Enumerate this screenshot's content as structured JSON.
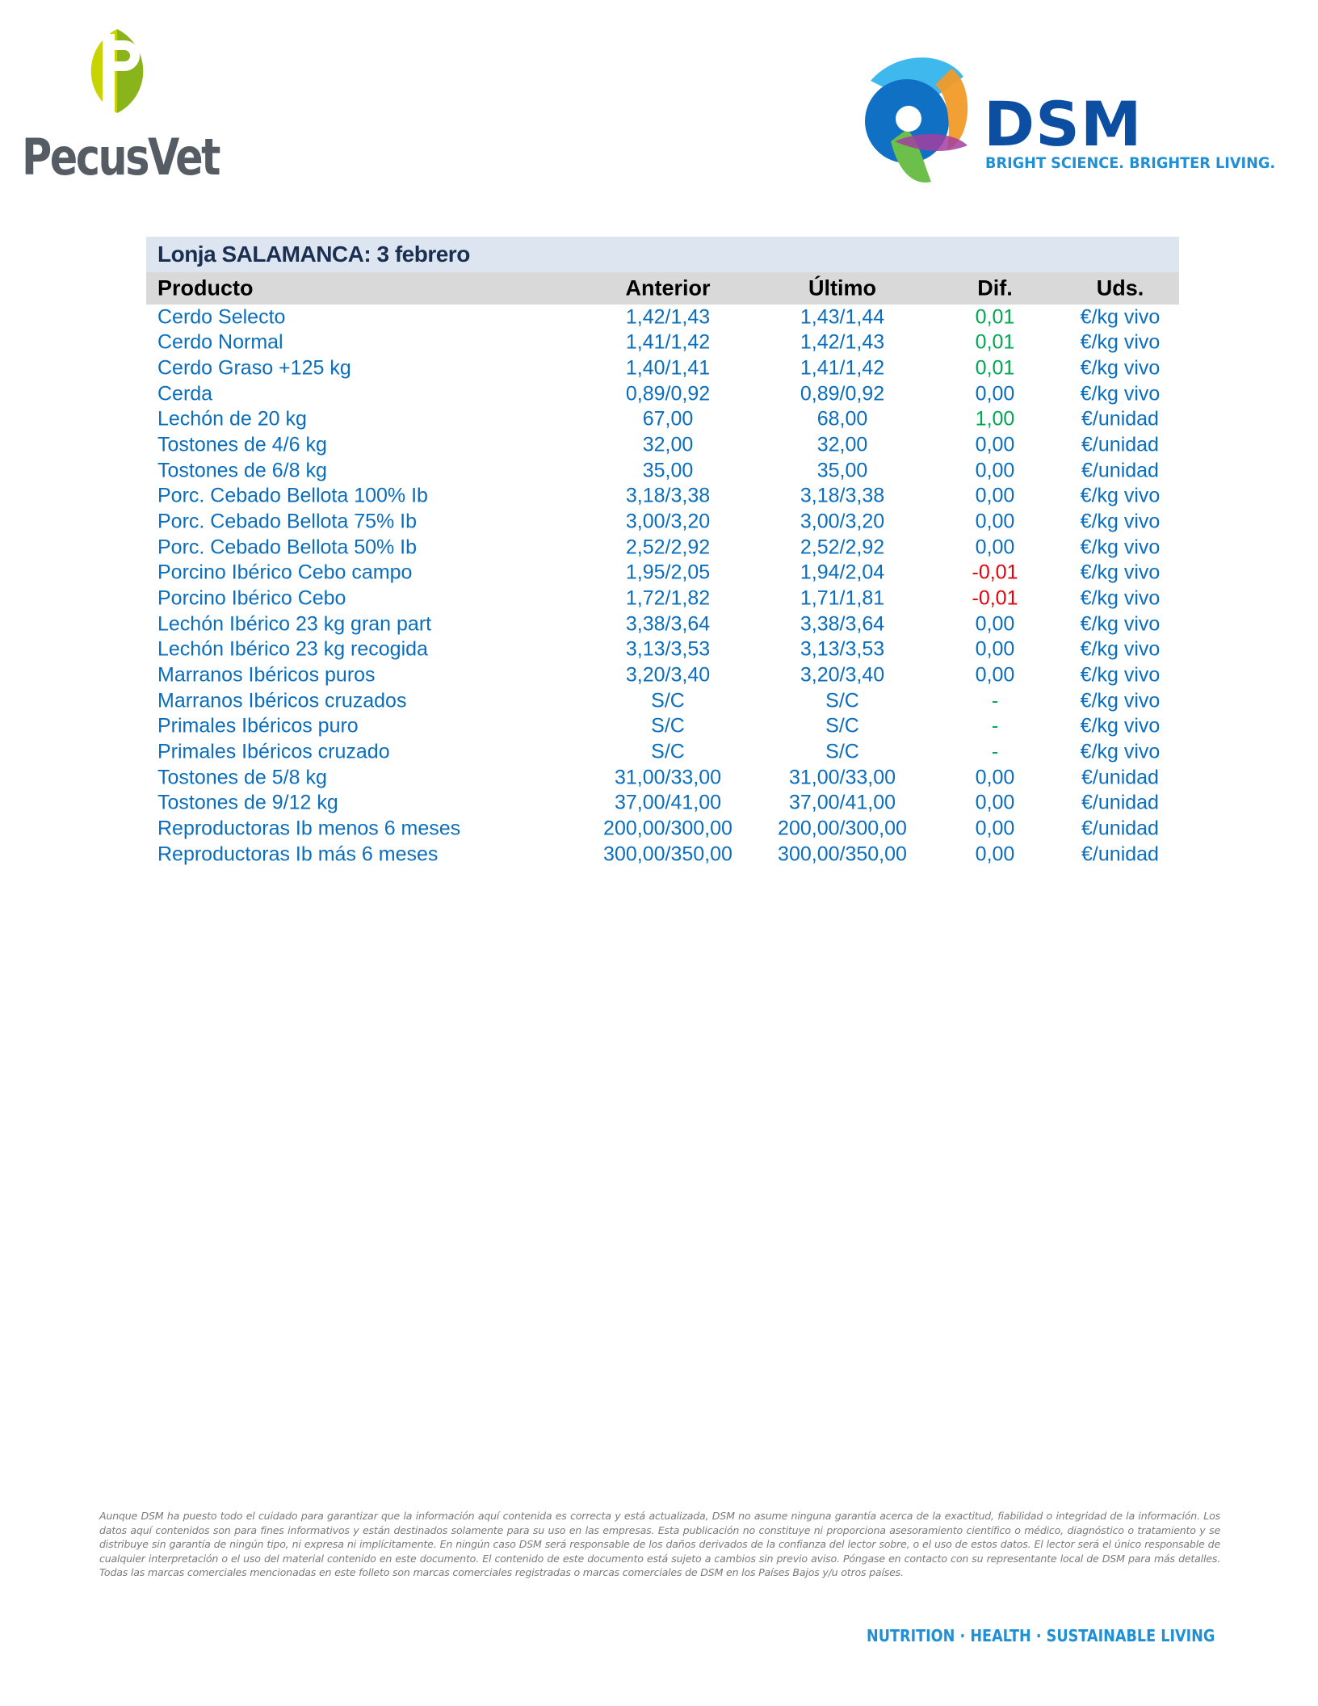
{
  "logos": {
    "left": {
      "text": "PecusVet",
      "icon_colors": [
        "#c8d400",
        "#8ab51a"
      ]
    },
    "right": {
      "text": "DSM",
      "tagline": "BRIGHT SCIENCE. BRIGHTER LIVING."
    }
  },
  "table": {
    "title": "Lonja SALAMANCA: 3 febrero",
    "headers": [
      "Producto",
      "Anterior",
      "Último",
      "Dif.",
      "Uds."
    ],
    "colors": {
      "text": "#0a6ebd",
      "positive": "#00a651",
      "negative": "#e8000b",
      "title_band": "#dce5f0",
      "header_band": "#d9d9d9"
    },
    "rows": [
      {
        "producto": "Cerdo Selecto",
        "anterior": "1,42/1,43",
        "ultimo": "1,43/1,44",
        "dif": "0,01",
        "uds": "€/kg vivo",
        "trend": "up"
      },
      {
        "producto": "Cerdo Normal",
        "anterior": "1,41/1,42",
        "ultimo": "1,42/1,43",
        "dif": "0,01",
        "uds": "€/kg vivo",
        "trend": "up"
      },
      {
        "producto": "Cerdo Graso +125 kg",
        "anterior": "1,40/1,41",
        "ultimo": "1,41/1,42",
        "dif": "0,01",
        "uds": "€/kg vivo",
        "trend": "up"
      },
      {
        "producto": "Cerda",
        "anterior": "0,89/0,92",
        "ultimo": "0,89/0,92",
        "dif": "0,00",
        "uds": "€/kg vivo",
        "trend": "flat"
      },
      {
        "producto": "Lechón de 20 kg",
        "anterior": "67,00",
        "ultimo": "68,00",
        "dif": "1,00",
        "uds": "€/unidad",
        "trend": "up"
      },
      {
        "producto": "Tostones de 4/6 kg",
        "anterior": "32,00",
        "ultimo": "32,00",
        "dif": "0,00",
        "uds": "€/unidad",
        "trend": "flat"
      },
      {
        "producto": "Tostones de 6/8 kg",
        "anterior": "35,00",
        "ultimo": "35,00",
        "dif": "0,00",
        "uds": "€/unidad",
        "trend": "flat"
      },
      {
        "producto": "Porc. Cebado Bellota 100% Ib",
        "anterior": "3,18/3,38",
        "ultimo": "3,18/3,38",
        "dif": "0,00",
        "uds": "€/kg vivo",
        "trend": "flat"
      },
      {
        "producto": "Porc. Cebado Bellota 75% Ib",
        "anterior": "3,00/3,20",
        "ultimo": "3,00/3,20",
        "dif": "0,00",
        "uds": "€/kg vivo",
        "trend": "flat"
      },
      {
        "producto": "Porc. Cebado Bellota 50% Ib",
        "anterior": "2,52/2,92",
        "ultimo": "2,52/2,92",
        "dif": "0,00",
        "uds": "€/kg vivo",
        "trend": "flat"
      },
      {
        "producto": "Porcino Ibérico Cebo campo",
        "anterior": "1,95/2,05",
        "ultimo": "1,94/2,04",
        "dif": "-0,01",
        "uds": "€/kg vivo",
        "trend": "down"
      },
      {
        "producto": "Porcino Ibérico Cebo",
        "anterior": "1,72/1,82",
        "ultimo": "1,71/1,81",
        "dif": "-0,01",
        "uds": "€/kg vivo",
        "trend": "down"
      },
      {
        "producto": "Lechón Ibérico 23 kg gran part",
        "anterior": "3,38/3,64",
        "ultimo": "3,38/3,64",
        "dif": "0,00",
        "uds": "€/kg vivo",
        "trend": "flat"
      },
      {
        "producto": "Lechón Ibérico 23 kg recogida",
        "anterior": "3,13/3,53",
        "ultimo": "3,13/3,53",
        "dif": "0,00",
        "uds": "€/kg vivo",
        "trend": "flat"
      },
      {
        "producto": "Marranos Ibéricos puros",
        "anterior": "3,20/3,40",
        "ultimo": "3,20/3,40",
        "dif": "0,00",
        "uds": "€/kg vivo",
        "trend": "flat"
      },
      {
        "producto": "Marranos Ibéricos cruzados",
        "anterior": "S/C",
        "ultimo": "S/C",
        "dif": "-",
        "uds": "€/kg vivo",
        "trend": "none"
      },
      {
        "producto": "Primales Ibéricos puro",
        "anterior": "S/C",
        "ultimo": "S/C",
        "dif": "-",
        "uds": "€/kg vivo",
        "trend": "none"
      },
      {
        "producto": "Primales Ibéricos cruzado",
        "anterior": "S/C",
        "ultimo": "S/C",
        "dif": "-",
        "uds": "€/kg vivo",
        "trend": "none"
      },
      {
        "producto": "Tostones de 5/8 kg",
        "anterior": "31,00/33,00",
        "ultimo": "31,00/33,00",
        "dif": "0,00",
        "uds": "€/unidad",
        "trend": "flat"
      },
      {
        "producto": "Tostones de 9/12 kg",
        "anterior": "37,00/41,00",
        "ultimo": "37,00/41,00",
        "dif": "0,00",
        "uds": "€/unidad",
        "trend": "flat"
      },
      {
        "producto": "Reproductoras Ib menos 6 meses",
        "anterior": "200,00/300,00",
        "ultimo": "200,00/300,00",
        "dif": "0,00",
        "uds": "€/unidad",
        "trend": "flat"
      },
      {
        "producto": "Reproductoras Ib más 6 meses",
        "anterior": "300,00/350,00",
        "ultimo": "300,00/350,00",
        "dif": "0,00",
        "uds": "€/unidad",
        "trend": "flat"
      }
    ]
  },
  "footer": {
    "disclaimer": "Aunque DSM ha puesto todo el cuidado para garantizar que la información aquí contenida es correcta y está actualizada, DSM no asume ninguna garantía acerca de la exactitud, fiabilidad o integridad de la información. Los datos aquí contenidos son para fines informativos y están destinados solamente para su uso en las empresas. Esta publicación no constituye ni proporciona asesoramiento científico o médico, diagnóstico o tratamiento y se distribuye sin garantía de ningún tipo, ni expresa ni implícitamente. En ningún caso DSM será responsable de los daños derivados de la confianza del lector sobre, o el uso de estos datos. El lector será el único responsable de cualquier interpretación o el uso del material contenido en este documento. El contenido de este documento está sujeto a cambios sin previo aviso. Póngase en contacto con su representante local de DSM para más detalles. Todas las marcas comerciales mencionadas en este folleto son marcas comerciales registradas o marcas comerciales de DSM en los Países Bajos y/u otros países.",
    "tagline": "NUTRITION · HEALTH · SUSTAINABLE LIVING"
  }
}
